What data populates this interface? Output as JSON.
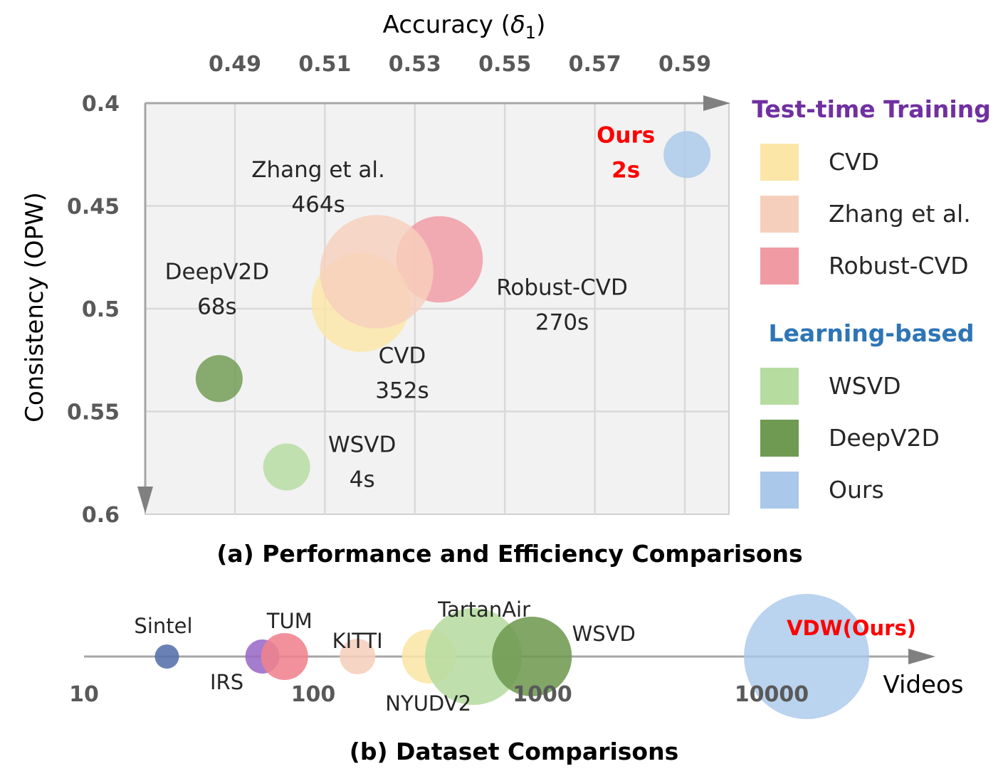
{
  "chart_data": [
    {
      "type": "scatter",
      "variant": "bubble",
      "caption": "(a) Performance and Efficiency Comparisons",
      "xlabel": "Accuracy (δ1)",
      "xlabel_base": "Accuracy (",
      "xlabel_symbol": "δ",
      "xlabel_sub": "1",
      "xlabel_end": ")",
      "ylabel": "Consistency (OPW)",
      "xlim": [
        0.47,
        0.6
      ],
      "ylim": [
        0.4,
        0.6
      ],
      "y_inverted": true,
      "x_ticks": [
        "0.49",
        "0.51",
        "0.53",
        "0.55",
        "0.57",
        "0.59"
      ],
      "x_tick_values": [
        0.49,
        0.51,
        0.53,
        0.55,
        0.57,
        0.59
      ],
      "y_ticks": [
        "0.4",
        "0.45",
        "0.5",
        "0.55",
        "0.6"
      ],
      "y_tick_values": [
        0.4,
        0.45,
        0.5,
        0.55,
        0.6
      ],
      "grid": true,
      "points": [
        {
          "name": "CVD",
          "time": "352s",
          "time_seconds": 352,
          "x": 0.518,
          "y": 0.497,
          "color": "#fbe6a7"
        },
        {
          "name": "Zhang et al.",
          "time": "464s",
          "time_seconds": 464,
          "x": 0.5215,
          "y": 0.482,
          "color": "#f6cfbc"
        },
        {
          "name": "Robust-CVD",
          "time": "270s",
          "time_seconds": 270,
          "x": 0.5355,
          "y": 0.476,
          "color": "#f09aa4"
        },
        {
          "name": "DeepV2D",
          "time": "68s",
          "time_seconds": 68,
          "x": 0.4865,
          "y": 0.534,
          "color": "#6f9a51"
        },
        {
          "name": "WSVD",
          "time": "4s",
          "time_seconds": 4,
          "x": 0.5015,
          "y": 0.577,
          "color": "#b6dca0"
        },
        {
          "name": "Ours",
          "time": "2s",
          "time_seconds": 2,
          "x": 0.5905,
          "y": 0.425,
          "color": "#a9c8ea"
        }
      ],
      "legend": {
        "placement": "right",
        "groups": [
          {
            "title": "Test-time Training",
            "color": "#7030a0",
            "items": [
              {
                "label": "CVD",
                "color": "#fbe6a7"
              },
              {
                "label": "Zhang et al.",
                "color": "#f6cfbc"
              },
              {
                "label": "Robust-CVD",
                "color": "#f09aa4"
              }
            ]
          },
          {
            "title": "Learning-based",
            "color": "#2e75b6",
            "items": [
              {
                "label": "WSVD",
                "color": "#b6dca0"
              },
              {
                "label": "DeepV2D",
                "color": "#6f9a51"
              },
              {
                "label": "Ours",
                "color": "#a9c8ea"
              }
            ]
          }
        ]
      }
    },
    {
      "type": "scatter",
      "variant": "bubble",
      "caption": "(b) Dataset Comparisons",
      "xlabel": "Videos",
      "x_scale": "log",
      "x_ticks": [
        "10",
        "100",
        "1000",
        "10000"
      ],
      "x_tick_values": [
        10,
        100,
        1000,
        10000
      ],
      "datasets": [
        {
          "name": "Sintel",
          "videos": 23,
          "color": "#5570ab"
        },
        {
          "name": "IRS",
          "videos": 60,
          "color": "#9a6ac8"
        },
        {
          "name": "TUM",
          "videos": 75,
          "color": "#f0828e"
        },
        {
          "name": "KITTI",
          "videos": 156,
          "color": "#f6cfbc"
        },
        {
          "name": "NYUDV2",
          "videos": 320,
          "color": "#fbe6a7"
        },
        {
          "name": "TartanAir",
          "videos": 500,
          "color": "#b6dca0"
        },
        {
          "name": "WSVD",
          "videos": 900,
          "color": "#6f9a51"
        },
        {
          "name": "VDW(Ours)",
          "videos": 14200,
          "color": "#a9c8ea",
          "highlight": "#ff0000"
        }
      ]
    }
  ]
}
